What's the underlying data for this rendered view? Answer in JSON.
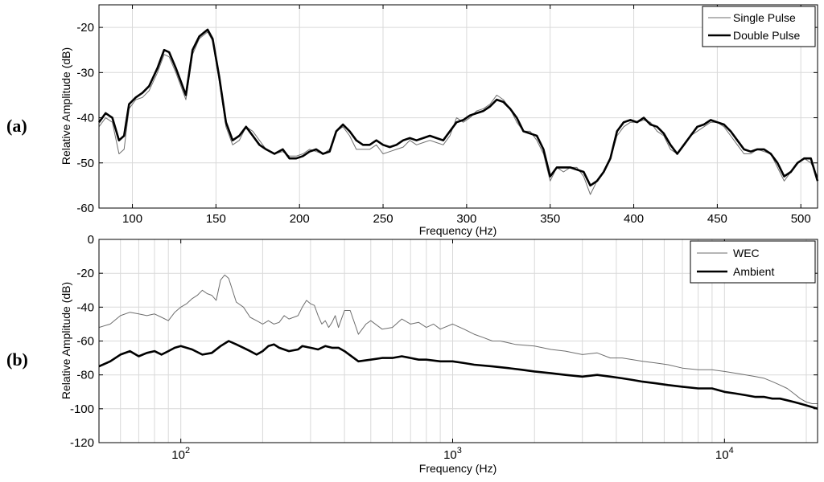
{
  "chart_data": [
    {
      "id": "a",
      "panel_label": "(a)",
      "type": "line",
      "xscale": "linear",
      "xlabel": "Frequency (Hz)",
      "ylabel": "Relative Amplitude (dB)",
      "xlim": [
        80,
        510
      ],
      "ylim": [
        -60,
        -15
      ],
      "xticks": [
        100,
        150,
        200,
        250,
        300,
        350,
        400,
        450,
        500
      ],
      "xtick_labels": [
        "100",
        "150",
        "200",
        "250",
        "300",
        "350",
        "400",
        "450",
        "500"
      ],
      "yticks": [
        -60,
        -50,
        -40,
        -30,
        -20
      ],
      "ytick_labels": [
        "-60",
        "-50",
        "-40",
        "-30",
        "-20"
      ],
      "grid": true,
      "legend": {
        "placement": "top-right",
        "entries": [
          "Single Pulse",
          "Double Pulse"
        ]
      },
      "series": [
        {
          "name": "Single Pulse",
          "color": "#6e6e6e",
          "width": "thin",
          "x": [
            80,
            84,
            88,
            92,
            95,
            98,
            102,
            106,
            110,
            115,
            119,
            122,
            126,
            129,
            132,
            136,
            140,
            145,
            148,
            152,
            156,
            160,
            164,
            168,
            172,
            176,
            180,
            185,
            190,
            194,
            198,
            202,
            206,
            210,
            214,
            218,
            222,
            226,
            230,
            234,
            238,
            242,
            246,
            250,
            254,
            258,
            262,
            266,
            270,
            274,
            278,
            282,
            286,
            290,
            294,
            298,
            302,
            306,
            310,
            314,
            318,
            322,
            326,
            330,
            334,
            338,
            342,
            346,
            350,
            354,
            358,
            362,
            366,
            370,
            374,
            378,
            382,
            386,
            390,
            394,
            398,
            402,
            406,
            410,
            414,
            418,
            422,
            426,
            430,
            434,
            438,
            442,
            446,
            450,
            454,
            458,
            462,
            466,
            470,
            474,
            478,
            482,
            486,
            490,
            494,
            498,
            502,
            506,
            510
          ],
          "y": [
            -42,
            -40,
            -41,
            -48,
            -47,
            -38,
            -36,
            -35.5,
            -34,
            -30,
            -26,
            -26.5,
            -30,
            -33,
            -36,
            -26,
            -22.5,
            -21,
            -23,
            -32,
            -42,
            -46,
            -45,
            -42,
            -43,
            -45,
            -47,
            -48,
            -47.5,
            -48.5,
            -48.5,
            -48,
            -47,
            -47.5,
            -48,
            -47,
            -43,
            -42,
            -44,
            -47,
            -47,
            -47,
            -46,
            -48,
            -47.5,
            -47,
            -46.5,
            -45,
            -46,
            -45.5,
            -45,
            -45.5,
            -46,
            -44,
            -40,
            -41,
            -40,
            -38.5,
            -38,
            -37,
            -35,
            -36,
            -38,
            -41,
            -43,
            -43,
            -45,
            -48,
            -54,
            -51,
            -52,
            -51,
            -51,
            -53,
            -57,
            -54,
            -52,
            -49,
            -44,
            -42,
            -41,
            -41,
            -40.5,
            -41,
            -43,
            -44,
            -47,
            -48,
            -46,
            -44,
            -43,
            -42,
            -41,
            -41,
            -42,
            -44,
            -46,
            -48,
            -48,
            -47,
            -47.5,
            -48,
            -51,
            -54,
            -52,
            -50,
            -49,
            -50,
            -53
          ]
        },
        {
          "name": "Double Pulse",
          "color": "#000000",
          "width": "thick",
          "x": [
            80,
            84,
            88,
            92,
            95,
            98,
            102,
            106,
            110,
            115,
            119,
            122,
            126,
            129,
            132,
            136,
            140,
            145,
            148,
            152,
            156,
            160,
            164,
            168,
            172,
            176,
            180,
            185,
            190,
            194,
            198,
            202,
            206,
            210,
            214,
            218,
            222,
            226,
            230,
            234,
            238,
            242,
            246,
            250,
            254,
            258,
            262,
            266,
            270,
            274,
            278,
            282,
            286,
            290,
            294,
            298,
            302,
            306,
            310,
            314,
            318,
            322,
            326,
            330,
            334,
            338,
            342,
            346,
            350,
            354,
            358,
            362,
            366,
            370,
            374,
            378,
            382,
            386,
            390,
            394,
            398,
            402,
            406,
            410,
            414,
            418,
            422,
            426,
            430,
            434,
            438,
            442,
            446,
            450,
            454,
            458,
            462,
            466,
            470,
            474,
            478,
            482,
            486,
            490,
            494,
            498,
            502,
            506,
            510
          ],
          "y": [
            -41,
            -39,
            -40,
            -45,
            -44,
            -37,
            -35.5,
            -34.5,
            -33,
            -29,
            -25,
            -25.5,
            -29,
            -32,
            -35,
            -25,
            -22,
            -20.5,
            -22.5,
            -31,
            -41,
            -45,
            -44,
            -42,
            -44,
            -46,
            -47,
            -48,
            -47,
            -49,
            -49,
            -48.5,
            -47.5,
            -47,
            -48,
            -47.5,
            -43,
            -41.5,
            -43,
            -45,
            -46,
            -46,
            -45,
            -46,
            -46.5,
            -46,
            -45,
            -44.5,
            -45,
            -44.5,
            -44,
            -44.5,
            -45,
            -43,
            -41,
            -40.5,
            -39.5,
            -39,
            -38.5,
            -37.5,
            -36,
            -36.5,
            -38,
            -40,
            -43,
            -43.5,
            -44,
            -47,
            -53,
            -51,
            -51,
            -51,
            -51.5,
            -52,
            -55,
            -54,
            -52,
            -49,
            -43,
            -41,
            -40.5,
            -41,
            -40,
            -41.5,
            -42,
            -43.5,
            -46,
            -48,
            -46,
            -44,
            -42,
            -41.5,
            -40.5,
            -41,
            -41.5,
            -43,
            -45,
            -47,
            -47.5,
            -47,
            -47,
            -48,
            -50,
            -53,
            -52,
            -50,
            -49,
            -49,
            -54
          ]
        }
      ]
    },
    {
      "id": "b",
      "panel_label": "(b)",
      "type": "line",
      "xscale": "log",
      "xlabel": "Frequency (Hz)",
      "ylabel": "Relative Amplitude (dB)",
      "xlim": [
        50,
        22000
      ],
      "ylim": [
        -120,
        0
      ],
      "xticks": [
        100,
        1000,
        10000
      ],
      "xtick_labels": [
        {
          "base": "10",
          "exp": "2"
        },
        {
          "base": "10",
          "exp": "3"
        },
        {
          "base": "10",
          "exp": "4"
        }
      ],
      "yticks": [
        -120,
        -100,
        -80,
        -60,
        -40,
        -20,
        0
      ],
      "ytick_labels": [
        "-120",
        "-100",
        "-80",
        "-60",
        "-40",
        "-20",
        "0"
      ],
      "grid": true,
      "legend": {
        "placement": "top-right",
        "entries": [
          "WEC",
          "Ambient"
        ]
      },
      "series": [
        {
          "name": "WEC",
          "color": "#6e6e6e",
          "width": "thin",
          "x": [
            50,
            55,
            60,
            65,
            70,
            75,
            80,
            85,
            90,
            95,
            100,
            105,
            110,
            115,
            120,
            125,
            130,
            135,
            140,
            145,
            150,
            160,
            170,
            180,
            190,
            200,
            210,
            220,
            230,
            240,
            250,
            260,
            270,
            280,
            290,
            300,
            310,
            320,
            330,
            340,
            350,
            360,
            370,
            380,
            400,
            420,
            450,
            480,
            500,
            550,
            600,
            650,
            700,
            750,
            800,
            850,
            900,
            1000,
            1100,
            1200,
            1300,
            1400,
            1500,
            1700,
            2000,
            2300,
            2600,
            3000,
            3400,
            3800,
            4200,
            4600,
            5000,
            5600,
            6200,
            7000,
            8000,
            9000,
            10000,
            11000,
            12000,
            13000,
            14000,
            15000,
            16000,
            17000,
            18000,
            19000,
            20000,
            21000,
            22000
          ],
          "y": [
            -52,
            -50,
            -45,
            -43,
            -44,
            -45,
            -44,
            -46,
            -48,
            -43,
            -40,
            -38,
            -35,
            -33,
            -30,
            -32,
            -33,
            -36,
            -24,
            -21,
            -23,
            -37,
            -40,
            -46,
            -48,
            -50,
            -48,
            -50,
            -49,
            -45,
            -47,
            -46,
            -45,
            -40,
            -36,
            -38,
            -39,
            -45,
            -50,
            -48,
            -52,
            -49,
            -45,
            -52,
            -42,
            -42,
            -56,
            -50,
            -48,
            -53,
            -52,
            -47,
            -50,
            -49,
            -52,
            -50,
            -53,
            -50,
            -53,
            -56,
            -58,
            -60,
            -60,
            -62,
            -63,
            -65,
            -66,
            -68,
            -67,
            -70,
            -70,
            -71,
            -72,
            -73,
            -74,
            -76,
            -77,
            -77,
            -78,
            -79,
            -80,
            -81,
            -82,
            -84,
            -86,
            -88,
            -91,
            -94,
            -96,
            -97,
            -97
          ]
        },
        {
          "name": "Ambient",
          "color": "#000000",
          "width": "thick",
          "x": [
            50,
            55,
            60,
            65,
            70,
            75,
            80,
            85,
            90,
            95,
            100,
            110,
            120,
            130,
            140,
            150,
            160,
            170,
            180,
            190,
            200,
            210,
            220,
            230,
            250,
            270,
            280,
            300,
            320,
            340,
            360,
            380,
            400,
            450,
            500,
            550,
            600,
            650,
            700,
            750,
            800,
            900,
            1000,
            1100,
            1200,
            1400,
            1600,
            1800,
            2000,
            2300,
            2600,
            3000,
            3400,
            3800,
            4200,
            4600,
            5000,
            5600,
            6200,
            7000,
            8000,
            9000,
            10000,
            11000,
            12000,
            13000,
            14000,
            15000,
            16000,
            17000,
            18000,
            19000,
            20000,
            21000,
            22000
          ],
          "y": [
            -75,
            -72,
            -68,
            -66,
            -69,
            -67,
            -66,
            -68,
            -66,
            -64,
            -63,
            -65,
            -68,
            -67,
            -63,
            -60,
            -62,
            -64,
            -66,
            -68,
            -66,
            -63,
            -62,
            -64,
            -66,
            -65,
            -63,
            -64,
            -65,
            -63,
            -64,
            -64,
            -66,
            -72,
            -71,
            -70,
            -70,
            -69,
            -70,
            -71,
            -71,
            -72,
            -72,
            -73,
            -74,
            -75,
            -76,
            -77,
            -78,
            -79,
            -80,
            -81,
            -80,
            -81,
            -82,
            -83,
            -84,
            -85,
            -86,
            -87,
            -88,
            -88,
            -90,
            -91,
            -92,
            -93,
            -93,
            -94,
            -94,
            -95,
            -96,
            -97,
            -98,
            -99,
            -100
          ]
        }
      ]
    }
  ]
}
